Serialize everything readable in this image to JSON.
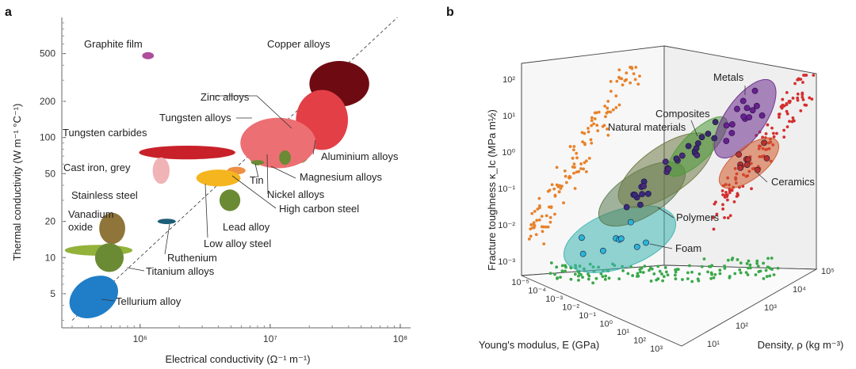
{
  "chart_data": [
    {
      "panel": "a",
      "type": "scatter",
      "xlabel": "Electrical conductivity (Ω⁻¹ m⁻¹)",
      "ylabel": "Thermal conductivity (W m⁻¹ °C⁻¹)",
      "x_scale": "log",
      "y_scale": "log",
      "xlim": [
        250000,
        120000000
      ],
      "ylim": [
        2.6,
        1000
      ],
      "x_ticks": [
        {
          "value": 1000000,
          "label": "10⁶"
        },
        {
          "value": 10000000,
          "label": "10⁷"
        },
        {
          "value": 100000000,
          "label": "10⁸"
        }
      ],
      "y_ticks": [
        {
          "value": 5,
          "label": "5"
        },
        {
          "value": 10,
          "label": "10"
        },
        {
          "value": 20,
          "label": "20"
        },
        {
          "value": 50,
          "label": "50"
        },
        {
          "value": 100,
          "label": "100"
        },
        {
          "value": 200,
          "label": "200"
        },
        {
          "value": 500,
          "label": "500"
        }
      ],
      "reference_line": {
        "style": "dashed",
        "from": [
          300000,
          3
        ],
        "to": [
          95000000,
          1000
        ]
      },
      "materials": [
        {
          "name": "Graphite film",
          "x": 1150000,
          "y": 480,
          "rx": 0.045,
          "ry": 0.03,
          "color": "#b04e9e"
        },
        {
          "name": "Copper alloys",
          "x": 34000000,
          "y": 280,
          "rx": 0.23,
          "ry": 0.19,
          "color": "#6e0b12"
        },
        {
          "name": "Zinc alloys",
          "x": 17000000,
          "y": 72,
          "rx": 0.065,
          "ry": 0.07,
          "color": "#6b8a34"
        },
        {
          "name": "Tungsten alloys",
          "x": 8000000,
          "y": 72,
          "rx": 0.065,
          "ry": 0.09,
          "color": "#6b8a34"
        },
        {
          "name": "Aluminium alloys",
          "x": 25000000,
          "y": 140,
          "rx": 0.2,
          "ry": 0.25,
          "color": "#e33f47"
        },
        {
          "name": "Magnesium alloys",
          "x": 11500000,
          "y": 90,
          "rx": 0.29,
          "ry": 0.21,
          "color": "#ec6f73"
        },
        {
          "name": "Tungsten carbides",
          "x": 2300000,
          "y": 75,
          "rx": 0.37,
          "ry": 0.057,
          "color": "#c8212a"
        },
        {
          "name": "Cast iron, grey",
          "x": 1450000,
          "y": 53,
          "rx": 0.065,
          "ry": 0.11,
          "color": "#f0b3b6"
        },
        {
          "name": "Tin",
          "x": 8000000,
          "y": 62,
          "rx": 0.05,
          "ry": 0.02,
          "color": "#6b8a34"
        },
        {
          "name": "Nickel alloys",
          "x": 13000000,
          "y": 68,
          "rx": 0.045,
          "ry": 0.06,
          "color": "#6b8a34"
        },
        {
          "name": "High carbon steel",
          "x": 5500000,
          "y": 53,
          "rx": 0.07,
          "ry": 0.032,
          "color": "#ee8f43"
        },
        {
          "name": "Low alloy steel",
          "x": 4000000,
          "y": 46,
          "rx": 0.17,
          "ry": 0.07,
          "color": "#f5b51e"
        },
        {
          "name": "Lead alloy",
          "x": 4900000,
          "y": 30,
          "rx": 0.08,
          "ry": 0.09,
          "color": "#6b8a34"
        },
        {
          "name": "Stainless steel",
          "x": 610000,
          "y": 17.5,
          "rx": 0.1,
          "ry": 0.13,
          "color": "#8f7539"
        },
        {
          "name": "Ruthenium",
          "x": 1600000,
          "y": 20,
          "rx": 0.07,
          "ry": 0.022,
          "color": "#1d5d77"
        },
        {
          "name": "Vanadium oxide",
          "x": 480000,
          "y": 11.5,
          "rx": 0.26,
          "ry": 0.045,
          "color": "#92b23a"
        },
        {
          "name": "Titanium alloys",
          "x": 580000,
          "y": 10,
          "rx": 0.11,
          "ry": 0.12,
          "color": "#6b8a34"
        },
        {
          "name": "Tellurium alloy",
          "x": 440000,
          "y": 4.7,
          "rx": 0.2,
          "ry": 0.16,
          "color": "#1f7ec7",
          "rotate": -32
        }
      ]
    },
    {
      "panel": "b",
      "type": "scatter3d",
      "zlabel": "Fracture toughness κ_Ic (MPa m½)",
      "xlabel": "Young's modulus, E (GPa)",
      "ylabel": "Density, ρ (kg m⁻³)",
      "z_ticks": [
        "10²",
        "10¹",
        "10⁰",
        "10⁻¹",
        "10⁻²",
        "10⁻³"
      ],
      "x_ticks": [
        "10⁻⁵",
        "10⁻⁴",
        "10⁻³",
        "10⁻²",
        "10⁻¹",
        "10⁰",
        "10¹",
        "10²",
        "10³"
      ],
      "y_ticks": [
        "10¹",
        "10²",
        "10³",
        "10⁴",
        "10⁵"
      ],
      "groups": [
        {
          "name": "Metals",
          "color": "#6a2a8a"
        },
        {
          "name": "Composites",
          "color": "#4e9a3a"
        },
        {
          "name": "Natural materials",
          "color": "#6e7a45"
        },
        {
          "name": "Ceramics",
          "color": "#d0582a"
        },
        {
          "name": "Polymers",
          "color": "#5a7a50"
        },
        {
          "name": "Foam",
          "color": "#3ab5b0"
        }
      ],
      "projections": [
        {
          "plane": "toughness vs modulus",
          "color": "#e8822a"
        },
        {
          "plane": "toughness vs density",
          "color": "#d42e2e"
        },
        {
          "plane": "modulus vs density",
          "color": "#3aa84a"
        }
      ]
    }
  ],
  "figure": {
    "panel_a_label": "a",
    "panel_b_label": "b"
  }
}
